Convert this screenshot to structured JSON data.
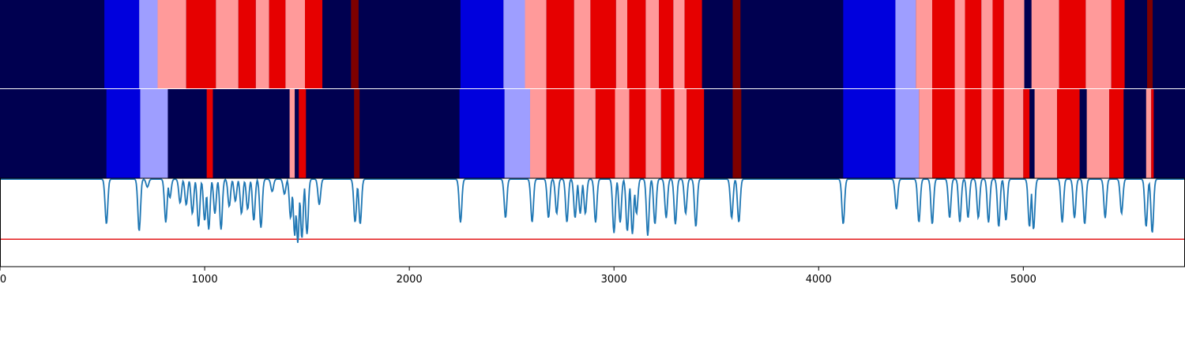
{
  "chart_data": {
    "type": "heatmap",
    "title": "",
    "xlabel": "",
    "ylabel": "",
    "xlim": [
      0,
      5790
    ],
    "xticks": [
      0,
      1000,
      2000,
      3000,
      4000,
      5000
    ],
    "colors": {
      "navy": "#000050",
      "blue": "#0000dd",
      "lightblue": "#9e9eff",
      "pink": "#ff9a9a",
      "red": "#e60000",
      "darkred": "#7e0000",
      "line": "#1f77b4",
      "threshold": "#e31a1c",
      "separator": "#ffffff"
    },
    "rows": [
      {
        "name": "row-1",
        "background": "navy",
        "segments": [
          [
            510,
            680,
            "blue"
          ],
          [
            680,
            770,
            "lightblue"
          ],
          [
            770,
            910,
            "pink"
          ],
          [
            910,
            1055,
            "red"
          ],
          [
            1055,
            1165,
            "pink"
          ],
          [
            1165,
            1250,
            "red"
          ],
          [
            1250,
            1315,
            "pink"
          ],
          [
            1315,
            1395,
            "red"
          ],
          [
            1395,
            1490,
            "pink"
          ],
          [
            1490,
            1575,
            "red"
          ],
          [
            1715,
            1752,
            "darkred"
          ],
          [
            2250,
            2460,
            "blue"
          ],
          [
            2460,
            2565,
            "lightblue"
          ],
          [
            2565,
            2670,
            "pink"
          ],
          [
            2670,
            2805,
            "red"
          ],
          [
            2805,
            2885,
            "pink"
          ],
          [
            2885,
            3010,
            "red"
          ],
          [
            3010,
            3065,
            "pink"
          ],
          [
            3065,
            3155,
            "red"
          ],
          [
            3155,
            3220,
            "pink"
          ],
          [
            3220,
            3290,
            "red"
          ],
          [
            3290,
            3345,
            "pink"
          ],
          [
            3345,
            3430,
            "red"
          ],
          [
            3580,
            3618,
            "darkred"
          ],
          [
            4120,
            4375,
            "blue"
          ],
          [
            4375,
            4475,
            "lightblue"
          ],
          [
            4475,
            4555,
            "pink"
          ],
          [
            4555,
            4665,
            "red"
          ],
          [
            4665,
            4715,
            "pink"
          ],
          [
            4715,
            4795,
            "red"
          ],
          [
            4795,
            4850,
            "pink"
          ],
          [
            4850,
            4905,
            "red"
          ],
          [
            4905,
            5005,
            "pink"
          ],
          [
            5005,
            5040,
            "navy"
          ],
          [
            5040,
            5175,
            "pink"
          ],
          [
            5175,
            5305,
            "red"
          ],
          [
            5305,
            5430,
            "pink"
          ],
          [
            5430,
            5495,
            "red"
          ],
          [
            5605,
            5632,
            "darkred"
          ]
        ]
      },
      {
        "name": "row-2",
        "background": "navy",
        "segments": [
          [
            520,
            685,
            "blue"
          ],
          [
            685,
            820,
            "lightblue"
          ],
          [
            1010,
            1040,
            "red"
          ],
          [
            1415,
            1440,
            "pink"
          ],
          [
            1460,
            1495,
            "red"
          ],
          [
            1730,
            1757,
            "darkred"
          ],
          [
            2245,
            2465,
            "blue"
          ],
          [
            2465,
            2590,
            "lightblue"
          ],
          [
            2590,
            2670,
            "pink"
          ],
          [
            2670,
            2805,
            "red"
          ],
          [
            2805,
            2910,
            "pink"
          ],
          [
            2910,
            3005,
            "red"
          ],
          [
            3005,
            3075,
            "pink"
          ],
          [
            3075,
            3155,
            "red"
          ],
          [
            3155,
            3230,
            "pink"
          ],
          [
            3230,
            3295,
            "red"
          ],
          [
            3295,
            3355,
            "pink"
          ],
          [
            3355,
            3440,
            "red"
          ],
          [
            3580,
            3622,
            "darkred"
          ],
          [
            4120,
            4375,
            "blue"
          ],
          [
            4375,
            4490,
            "lightblue"
          ],
          [
            4490,
            4555,
            "pink"
          ],
          [
            4555,
            4665,
            "red"
          ],
          [
            4665,
            4715,
            "pink"
          ],
          [
            4715,
            4795,
            "red"
          ],
          [
            4795,
            4850,
            "pink"
          ],
          [
            4850,
            4905,
            "red"
          ],
          [
            4905,
            5000,
            "pink"
          ],
          [
            5000,
            5030,
            "red"
          ],
          [
            5055,
            5165,
            "pink"
          ],
          [
            5165,
            5275,
            "red"
          ],
          [
            5310,
            5420,
            "pink"
          ],
          [
            5420,
            5490,
            "red"
          ],
          [
            5600,
            5625,
            "pink"
          ],
          [
            5625,
            5637,
            "red"
          ]
        ]
      }
    ],
    "line": {
      "ylim": [
        0,
        1
      ],
      "baseline": 0.99,
      "threshold": 0.31,
      "dips": [
        [
          520,
          0.48
        ],
        [
          680,
          0.4
        ],
        [
          720,
          0.9
        ],
        [
          810,
          0.5
        ],
        [
          830,
          0.78
        ],
        [
          880,
          0.72
        ],
        [
          910,
          0.7
        ],
        [
          940,
          0.6
        ],
        [
          970,
          0.45
        ],
        [
          1000,
          0.52
        ],
        [
          1020,
          0.42
        ],
        [
          1050,
          0.6
        ],
        [
          1080,
          0.42
        ],
        [
          1120,
          0.68
        ],
        [
          1150,
          0.74
        ],
        [
          1180,
          0.6
        ],
        [
          1210,
          0.65
        ],
        [
          1240,
          0.52
        ],
        [
          1275,
          0.44
        ],
        [
          1330,
          0.85
        ],
        [
          1390,
          0.82
        ],
        [
          1420,
          0.55
        ],
        [
          1440,
          0.35
        ],
        [
          1455,
          0.27
        ],
        [
          1475,
          0.32
        ],
        [
          1500,
          0.37
        ],
        [
          1560,
          0.7
        ],
        [
          1735,
          0.5
        ],
        [
          1760,
          0.48
        ],
        [
          2250,
          0.5
        ],
        [
          2470,
          0.55
        ],
        [
          2600,
          0.5
        ],
        [
          2680,
          0.55
        ],
        [
          2720,
          0.6
        ],
        [
          2770,
          0.5
        ],
        [
          2810,
          0.55
        ],
        [
          2835,
          0.6
        ],
        [
          2860,
          0.6
        ],
        [
          2910,
          0.5
        ],
        [
          3000,
          0.38
        ],
        [
          3030,
          0.5
        ],
        [
          3065,
          0.4
        ],
        [
          3090,
          0.37
        ],
        [
          3110,
          0.6
        ],
        [
          3165,
          0.35
        ],
        [
          3200,
          0.48
        ],
        [
          3255,
          0.55
        ],
        [
          3300,
          0.48
        ],
        [
          3350,
          0.6
        ],
        [
          3400,
          0.45
        ],
        [
          3575,
          0.55
        ],
        [
          3610,
          0.5
        ],
        [
          4120,
          0.48
        ],
        [
          4380,
          0.65
        ],
        [
          4490,
          0.5
        ],
        [
          4555,
          0.48
        ],
        [
          4640,
          0.55
        ],
        [
          4690,
          0.5
        ],
        [
          4730,
          0.55
        ],
        [
          4780,
          0.55
        ],
        [
          4830,
          0.5
        ],
        [
          4880,
          0.45
        ],
        [
          4915,
          0.52
        ],
        [
          5030,
          0.45
        ],
        [
          5050,
          0.42
        ],
        [
          5190,
          0.5
        ],
        [
          5250,
          0.55
        ],
        [
          5300,
          0.48
        ],
        [
          5400,
          0.55
        ],
        [
          5480,
          0.6
        ],
        [
          5600,
          0.45
        ],
        [
          5630,
          0.38
        ]
      ]
    }
  },
  "axis": {
    "tick_labels": [
      "0",
      "1000",
      "2000",
      "3000",
      "4000",
      "5000"
    ]
  }
}
